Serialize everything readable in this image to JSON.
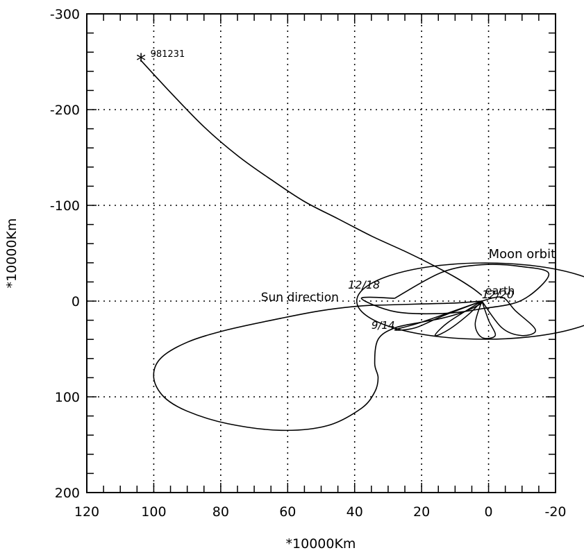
{
  "chart_data": {
    "type": "line",
    "title": "",
    "xlabel": "*10000Km",
    "ylabel": "*10000Km",
    "xlim": [
      120,
      -20
    ],
    "ylim": [
      -300,
      200
    ],
    "x_ticks": [
      120,
      100,
      80,
      60,
      40,
      20,
      0,
      -20
    ],
    "x_tick_labels": [
      "120",
      "100",
      "80",
      "60",
      "40",
      "20",
      "0",
      "-20"
    ],
    "y_ticks": [
      -300,
      -200,
      -100,
      0,
      100,
      200
    ],
    "y_tick_labels": [
      "-300",
      "-200",
      "-100",
      "0",
      "100",
      "200"
    ],
    "grid": true,
    "grid_style": "dotted",
    "series": [
      {
        "x": [
          104,
          95,
          85,
          75,
          65,
          55,
          45,
          35,
          25,
          18,
          10,
          5,
          2
        ],
        "y": [
          -252,
          -218,
          -182,
          -152,
          -127,
          -104,
          -86,
          -68,
          -52,
          -40,
          -25,
          -14,
          -6
        ]
      },
      {
        "x": [
          2,
          10,
          20,
          30,
          38,
          50,
          62,
          78,
          90,
          98,
          100,
          97,
          90,
          78,
          62,
          48,
          38,
          34,
          33,
          34,
          33,
          28,
          20,
          14,
          8,
          4,
          2
        ],
        "y": [
          0,
          2,
          3,
          4,
          5,
          10,
          18,
          30,
          43,
          60,
          80,
          100,
          115,
          128,
          135,
          130,
          112,
          95,
          80,
          65,
          40,
          28,
          22,
          18,
          12,
          6,
          2
        ]
      },
      {
        "x": [
          28,
          14,
          2,
          -10,
          -18,
          -10,
          2,
          14,
          28,
          38,
          28
        ],
        "y": [
          -3,
          -30,
          -38,
          -36,
          -28,
          -1,
          8,
          13,
          11,
          -3,
          -3
        ]
      }
    ],
    "annotations": [
      {
        "text": "*",
        "x": 104,
        "y": -250
      },
      {
        "text": "981231",
        "x": 101,
        "y": -255
      },
      {
        "text": "Moon orbit",
        "x": 0,
        "y": -45
      },
      {
        "text": "Sun direction",
        "x": 68,
        "y": 0
      },
      {
        "text": "earth",
        "x": 1,
        "y": -7
      },
      {
        "text": "12/18",
        "x": 42,
        "y": -13
      },
      {
        "text": "12/20",
        "x": 2,
        "y": -3
      },
      {
        "text": "9/14",
        "x": 35,
        "y": 29
      }
    ]
  }
}
